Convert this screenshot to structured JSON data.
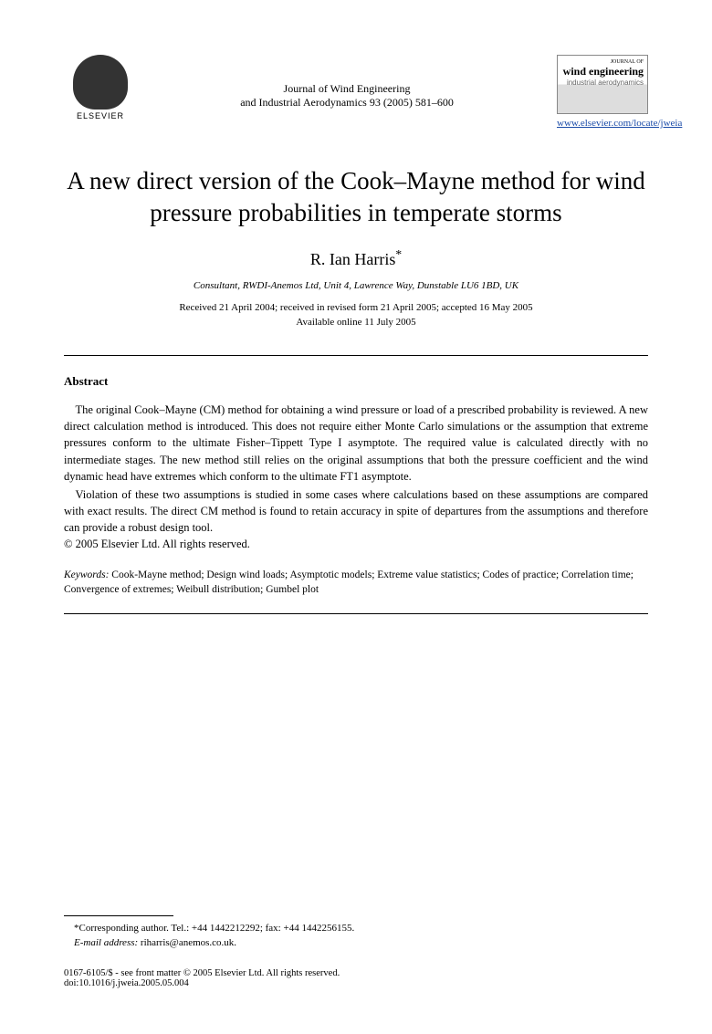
{
  "header": {
    "publisher_label": "ELSEVIER",
    "journal_line1": "Journal of Wind Engineering",
    "journal_line2": "and Industrial Aerodynamics 93 (2005) 581–600",
    "cover_supertitle": "JOURNAL OF",
    "cover_title": "wind engineering",
    "cover_sub": "industrial aerodynamics",
    "link": "www.elsevier.com/locate/jweia"
  },
  "title": "A new direct version of the Cook–Mayne method for wind pressure probabilities in temperate storms",
  "author": "R. Ian Harris",
  "author_marker": "*",
  "affiliation": "Consultant, RWDI-Anemos Ltd, Unit 4, Lawrence Way, Dunstable LU6 1BD, UK",
  "dates_line1": "Received 21 April 2004; received in revised form 21 April 2005; accepted 16 May 2005",
  "dates_line2": "Available online 11 July 2005",
  "abstract": {
    "heading": "Abstract",
    "p1": "The original Cook–Mayne (CM) method for obtaining a wind pressure or load of a prescribed probability is reviewed. A new direct calculation method is introduced. This does not require either Monte Carlo simulations or the assumption that extreme pressures conform to the ultimate Fisher–Tippett Type I asymptote. The required value is calculated directly with no intermediate stages. The new method still relies on the original assumptions that both the pressure coefficient and the wind dynamic head have extremes which conform to the ultimate FT1 asymptote.",
    "p2": "Violation of these two assumptions is studied in some cases where calculations based on these assumptions are compared with exact results. The direct CM method is found to retain accuracy in spite of departures from the assumptions and therefore can provide a robust design tool.",
    "copyright": "© 2005 Elsevier Ltd. All rights reserved."
  },
  "keywords": {
    "label": "Keywords:",
    "text": " Cook-Mayne method; Design wind loads; Asymptotic models; Extreme value statistics; Codes of practice; Correlation time; Convergence of extremes; Weibull distribution; Gumbel plot"
  },
  "footnote": {
    "corr": "*Corresponding author. Tel.: +44 1442212292; fax: +44 1442256155.",
    "email_label": "E-mail address:",
    "email": " riharris@anemos.co.uk."
  },
  "footer": {
    "issn": "0167-6105/$ - see front matter © 2005 Elsevier Ltd. All rights reserved.",
    "doi": "doi:10.1016/j.jweia.2005.05.004"
  }
}
